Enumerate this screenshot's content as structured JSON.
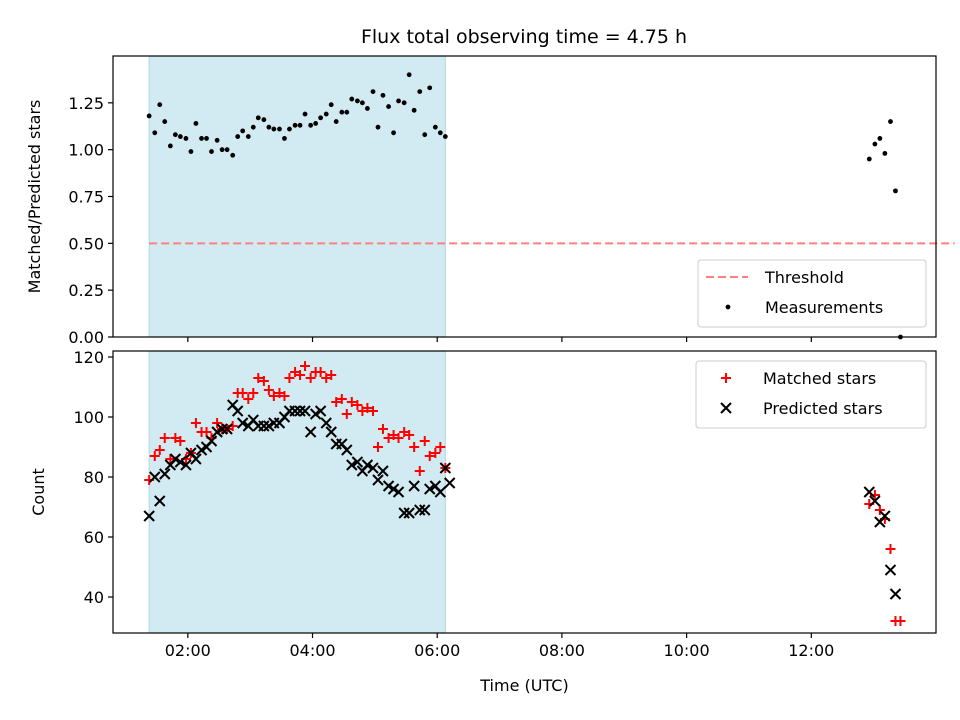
{
  "title": "Flux total observing time = 4.75 h",
  "colors": {
    "shade": "#add8e6",
    "threshold": "#ff7f7f",
    "measurement": "#000000",
    "matched": "#ff0000",
    "predicted": "#000000"
  },
  "chart_data": [
    {
      "type": "scatter",
      "panel": "top",
      "ylabel": "Matched/Predicted stars",
      "xlim": [
        0.8,
        14.0
      ],
      "ylim": [
        0.0,
        1.5
      ],
      "yticks": [
        0.0,
        0.25,
        0.5,
        0.75,
        1.0,
        1.25
      ],
      "ytick_labels": [
        "0.00",
        "0.25",
        "0.50",
        "0.75",
        "1.00",
        "1.25"
      ],
      "shaded_interval": [
        1.38,
        6.13
      ],
      "legend": {
        "placement": "lower right",
        "entries": [
          "Threshold",
          "Measurements"
        ]
      },
      "series": [
        {
          "name": "Threshold",
          "kind": "dashed-line",
          "x": [
            1.38,
            14.3
          ],
          "y": [
            0.5,
            0.5
          ]
        },
        {
          "name": "Measurements",
          "kind": "dots",
          "points": [
            [
              1.38,
              1.18
            ],
            [
              1.47,
              1.09
            ],
            [
              1.55,
              1.24
            ],
            [
              1.63,
              1.15
            ],
            [
              1.72,
              1.02
            ],
            [
              1.8,
              1.08
            ],
            [
              1.88,
              1.07
            ],
            [
              1.97,
              1.06
            ],
            [
              2.05,
              0.99
            ],
            [
              2.13,
              1.14
            ],
            [
              2.22,
              1.06
            ],
            [
              2.3,
              1.06
            ],
            [
              2.38,
              0.99
            ],
            [
              2.47,
              1.05
            ],
            [
              2.55,
              1.0
            ],
            [
              2.63,
              1.0
            ],
            [
              2.72,
              0.97
            ],
            [
              2.8,
              1.07
            ],
            [
              2.88,
              1.1
            ],
            [
              2.97,
              1.07
            ],
            [
              3.05,
              1.12
            ],
            [
              3.13,
              1.17
            ],
            [
              3.22,
              1.16
            ],
            [
              3.3,
              1.12
            ],
            [
              3.38,
              1.11
            ],
            [
              3.47,
              1.11
            ],
            [
              3.55,
              1.06
            ],
            [
              3.63,
              1.11
            ],
            [
              3.72,
              1.13
            ],
            [
              3.8,
              1.13
            ],
            [
              3.88,
              1.19
            ],
            [
              3.97,
              1.13
            ],
            [
              4.05,
              1.14
            ],
            [
              4.13,
              1.17
            ],
            [
              4.22,
              1.19
            ],
            [
              4.3,
              1.24
            ],
            [
              4.38,
              1.15
            ],
            [
              4.47,
              1.2
            ],
            [
              4.55,
              1.2
            ],
            [
              4.63,
              1.27
            ],
            [
              4.72,
              1.26
            ],
            [
              4.8,
              1.25
            ],
            [
              4.88,
              1.22
            ],
            [
              4.97,
              1.31
            ],
            [
              5.05,
              1.12
            ],
            [
              5.13,
              1.29
            ],
            [
              5.22,
              1.23
            ],
            [
              5.3,
              1.09
            ],
            [
              5.38,
              1.26
            ],
            [
              5.47,
              1.25
            ],
            [
              5.55,
              1.4
            ],
            [
              5.63,
              1.21
            ],
            [
              5.72,
              1.31
            ],
            [
              5.8,
              1.08
            ],
            [
              5.88,
              1.33
            ],
            [
              5.97,
              1.12
            ],
            [
              6.05,
              1.09
            ],
            [
              6.13,
              1.07
            ],
            [
              12.93,
              0.95
            ],
            [
              13.02,
              1.03
            ],
            [
              13.1,
              1.06
            ],
            [
              13.18,
              0.98
            ],
            [
              13.27,
              1.15
            ],
            [
              13.35,
              0.78
            ],
            [
              13.43,
              0.0
            ]
          ]
        }
      ]
    },
    {
      "type": "scatter",
      "panel": "bottom",
      "xlabel": "Time (UTC)",
      "ylabel": "Count",
      "xlim": [
        0.8,
        14.0
      ],
      "ylim": [
        28,
        122
      ],
      "xticks": [
        2,
        4,
        6,
        8,
        10,
        12
      ],
      "xtick_labels": [
        "02:00",
        "04:00",
        "06:00",
        "08:00",
        "10:00",
        "12:00"
      ],
      "yticks": [
        40,
        60,
        80,
        100,
        120
      ],
      "ytick_labels": [
        "40",
        "60",
        "80",
        "100",
        "120"
      ],
      "shaded_interval": [
        1.38,
        6.13
      ],
      "legend": {
        "placement": "upper right",
        "entries": [
          "Matched stars",
          "Predicted stars"
        ]
      },
      "series": [
        {
          "name": "Matched stars",
          "marker": "plus",
          "points": [
            [
              1.38,
              79
            ],
            [
              1.47,
              87
            ],
            [
              1.55,
              89
            ],
            [
              1.63,
              93
            ],
            [
              1.72,
              86
            ],
            [
              1.8,
              93
            ],
            [
              1.88,
              92
            ],
            [
              1.97,
              86
            ],
            [
              2.05,
              88
            ],
            [
              2.13,
              98
            ],
            [
              2.22,
              95
            ],
            [
              2.3,
              95
            ],
            [
              2.38,
              93
            ],
            [
              2.47,
              98
            ],
            [
              2.55,
              96
            ],
            [
              2.63,
              96
            ],
            [
              2.72,
              97
            ],
            [
              2.8,
              108
            ],
            [
              2.88,
              108
            ],
            [
              2.97,
              106
            ],
            [
              3.05,
              108
            ],
            [
              3.13,
              113
            ],
            [
              3.22,
              112
            ],
            [
              3.3,
              109
            ],
            [
              3.38,
              107
            ],
            [
              3.47,
              108
            ],
            [
              3.55,
              107
            ],
            [
              3.63,
              113
            ],
            [
              3.72,
              115
            ],
            [
              3.8,
              114
            ],
            [
              3.88,
              117
            ],
            [
              3.97,
              113
            ],
            [
              4.05,
              115
            ],
            [
              4.13,
              115
            ],
            [
              4.22,
              113
            ],
            [
              4.3,
              114
            ],
            [
              4.38,
              105
            ],
            [
              4.47,
              106
            ],
            [
              4.55,
              101
            ],
            [
              4.63,
              105
            ],
            [
              4.72,
              104
            ],
            [
              4.8,
              102
            ],
            [
              4.88,
              103
            ],
            [
              4.97,
              102
            ],
            [
              5.05,
              90
            ],
            [
              5.13,
              96
            ],
            [
              5.22,
              93
            ],
            [
              5.3,
              94
            ],
            [
              5.38,
              93
            ],
            [
              5.47,
              95
            ],
            [
              5.55,
              94
            ],
            [
              5.63,
              90
            ],
            [
              5.72,
              82
            ],
            [
              5.8,
              92
            ],
            [
              5.88,
              87
            ],
            [
              5.97,
              88
            ],
            [
              6.05,
              90
            ],
            [
              6.13,
              83
            ],
            [
              12.93,
              71
            ],
            [
              13.02,
              74
            ],
            [
              13.1,
              69
            ],
            [
              13.18,
              66
            ],
            [
              13.27,
              56
            ],
            [
              13.35,
              32
            ],
            [
              13.43,
              32
            ]
          ]
        },
        {
          "name": "Predicted stars",
          "marker": "x",
          "points": [
            [
              1.38,
              67
            ],
            [
              1.47,
              80
            ],
            [
              1.55,
              72
            ],
            [
              1.63,
              81
            ],
            [
              1.72,
              84
            ],
            [
              1.8,
              86
            ],
            [
              1.88,
              85
            ],
            [
              1.97,
              84
            ],
            [
              2.05,
              88
            ],
            [
              2.13,
              86
            ],
            [
              2.22,
              89
            ],
            [
              2.3,
              90
            ],
            [
              2.38,
              92
            ],
            [
              2.47,
              95
            ],
            [
              2.55,
              96
            ],
            [
              2.63,
              96
            ],
            [
              2.72,
              104
            ],
            [
              2.8,
              102
            ],
            [
              2.88,
              98
            ],
            [
              2.97,
              97
            ],
            [
              3.05,
              99
            ],
            [
              3.13,
              97
            ],
            [
              3.22,
              97
            ],
            [
              3.3,
              97
            ],
            [
              3.38,
              98
            ],
            [
              3.47,
              98
            ],
            [
              3.55,
              100
            ],
            [
              3.63,
              102
            ],
            [
              3.72,
              102
            ],
            [
              3.8,
              102
            ],
            [
              3.88,
              102
            ],
            [
              3.97,
              95
            ],
            [
              4.05,
              101
            ],
            [
              4.13,
              102
            ],
            [
              4.22,
              98
            ],
            [
              4.3,
              95
            ],
            [
              4.38,
              91
            ],
            [
              4.47,
              91
            ],
            [
              4.55,
              89
            ],
            [
              4.63,
              84
            ],
            [
              4.72,
              85
            ],
            [
              4.8,
              82
            ],
            [
              4.88,
              84
            ],
            [
              4.97,
              83
            ],
            [
              5.05,
              79
            ],
            [
              5.13,
              82
            ],
            [
              5.22,
              77
            ],
            [
              5.3,
              76
            ],
            [
              5.38,
              75
            ],
            [
              5.47,
              68
            ],
            [
              5.55,
              68
            ],
            [
              5.63,
              77
            ],
            [
              5.72,
              69
            ],
            [
              5.8,
              69
            ],
            [
              5.88,
              76
            ],
            [
              5.97,
              77
            ],
            [
              6.05,
              75
            ],
            [
              6.13,
              83
            ],
            [
              6.2,
              78
            ],
            [
              12.93,
              75
            ],
            [
              13.02,
              72
            ],
            [
              13.1,
              65
            ],
            [
              13.18,
              67
            ],
            [
              13.27,
              49
            ],
            [
              13.35,
              41
            ]
          ]
        }
      ]
    }
  ]
}
